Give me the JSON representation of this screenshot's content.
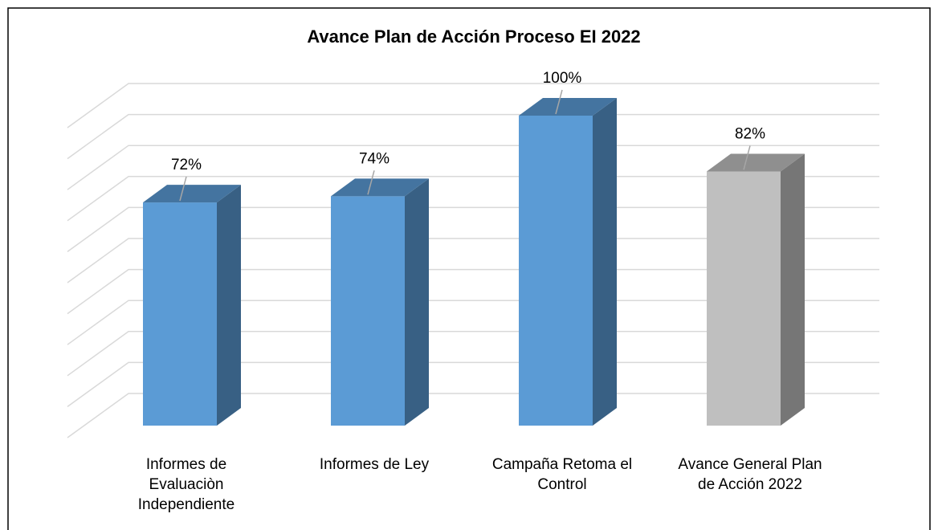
{
  "chart_data": {
    "type": "bar3d",
    "title": "Avance Plan de Acción Proceso EI 2022",
    "categories": [
      "Informes de Evaluaciòn Independiente",
      "Informes de Ley",
      "Campaña Retoma el Control",
      "Avance General Plan de Acción 2022"
    ],
    "values": [
      72,
      74,
      100,
      82
    ],
    "value_labels": [
      "72%",
      "74%",
      "100%",
      "82%"
    ],
    "colors": [
      "#5b9bd5",
      "#5b9bd5",
      "#5b9bd5",
      "#bfbfbf"
    ],
    "ylim": [
      0,
      100
    ],
    "yticks": [
      0,
      10,
      20,
      30,
      40,
      50,
      60,
      70,
      80,
      90,
      100
    ],
    "grid": true
  }
}
